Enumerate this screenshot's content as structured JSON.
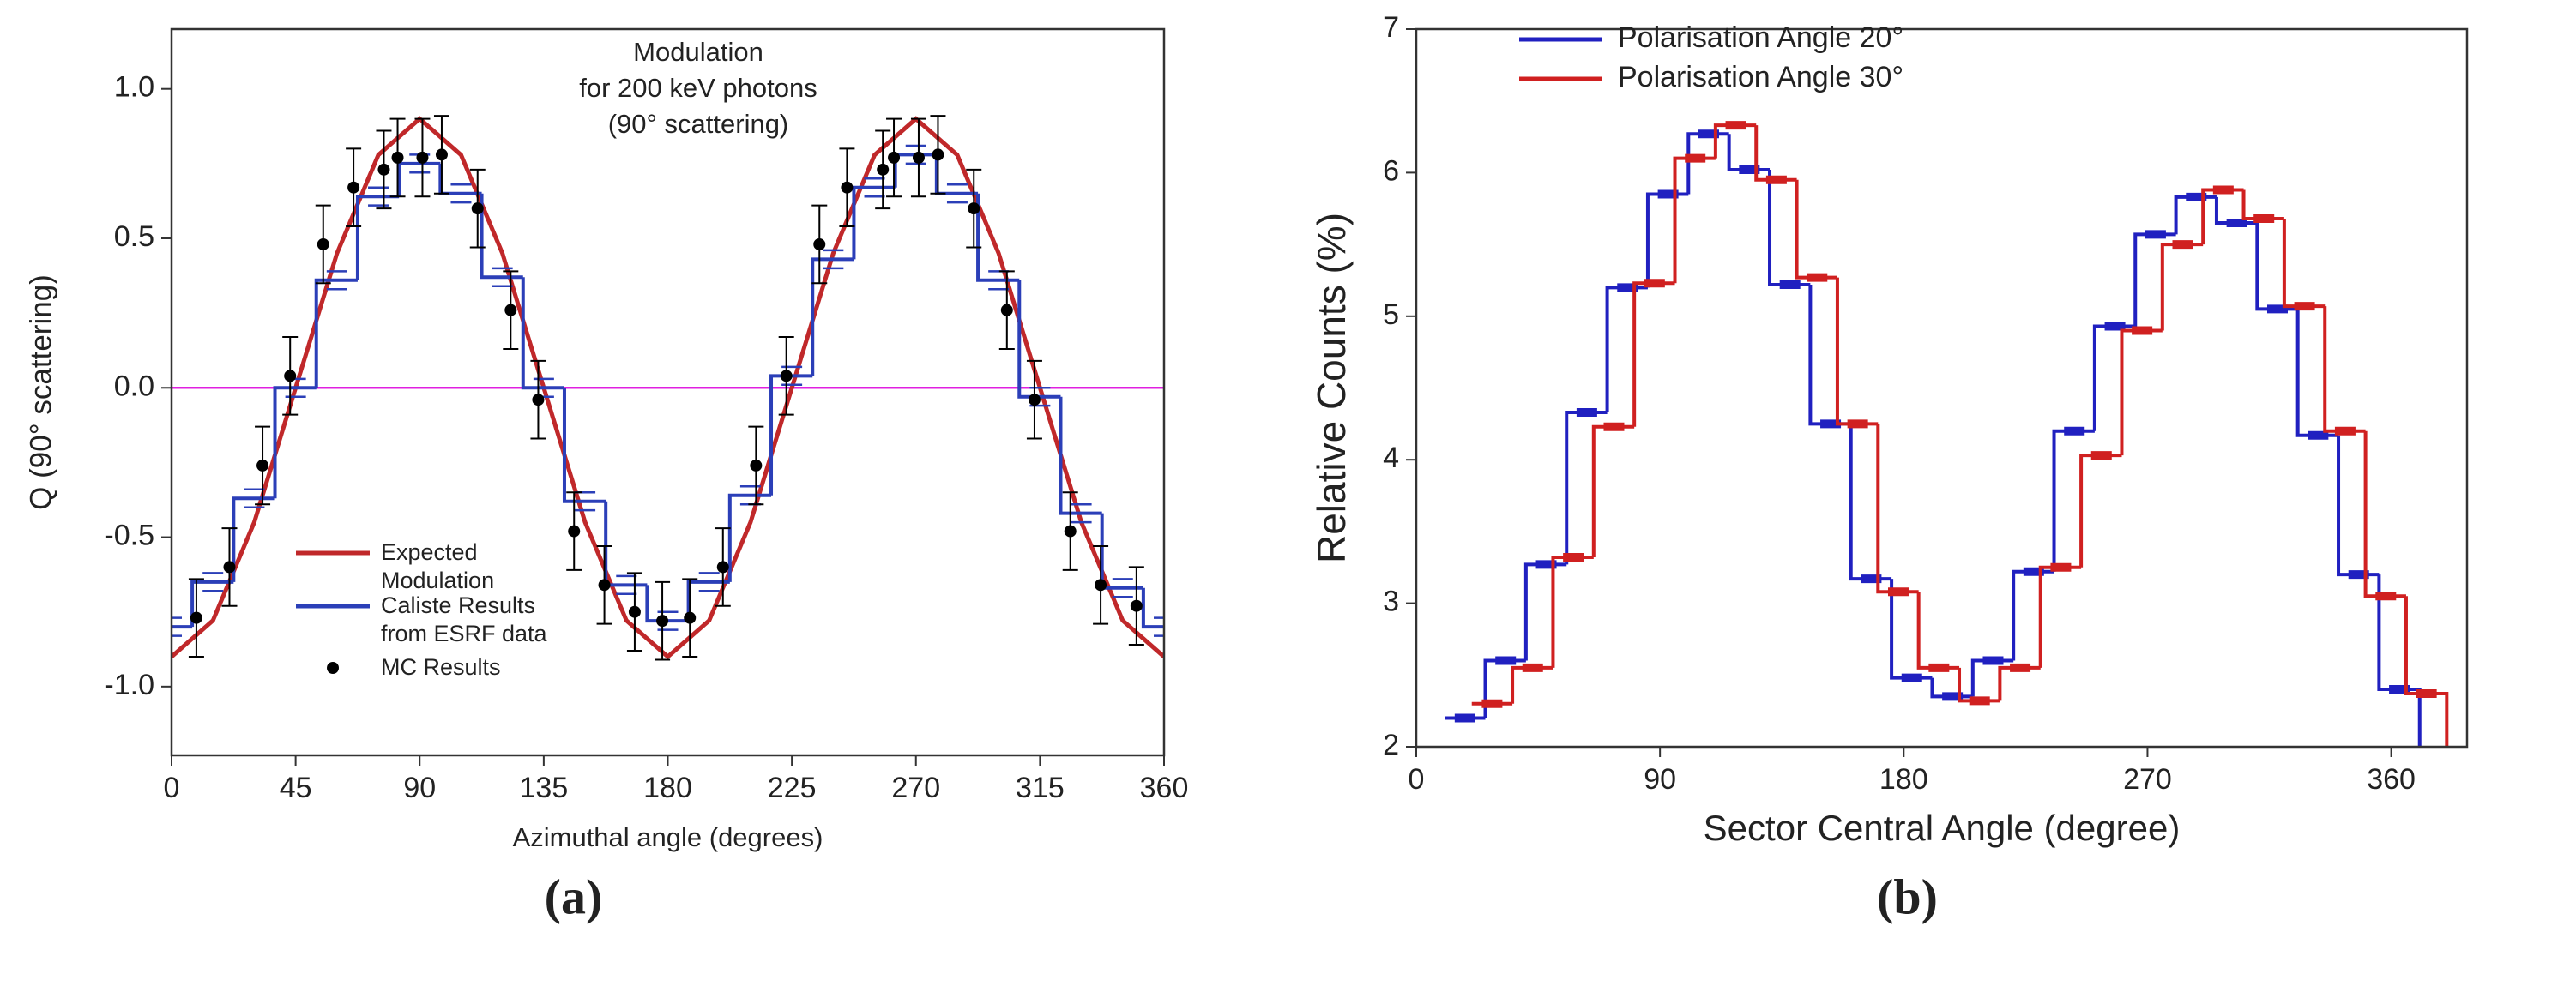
{
  "chart_data": [
    {
      "type": "line",
      "title": [
        "Modulation",
        "for 200 keV photons",
        "(90° scattering)"
      ],
      "x_label": "Azimuthal angle (degrees)",
      "y_label": "Q (90° scattering)",
      "caption": "(a)",
      "xlim": [
        0,
        360
      ],
      "xticks": [
        0,
        45,
        90,
        135,
        180,
        225,
        270,
        315,
        360
      ],
      "ylim": [
        -1.23,
        1.2
      ],
      "yticks": [
        {
          "value": -1,
          "label": "-1.0"
        },
        -0.5,
        {
          "value": 0,
          "label": "0.0"
        },
        0.5,
        {
          "value": 1,
          "label": "1.0"
        }
      ],
      "reference_line": {
        "value": 0,
        "color": "#e020e0"
      },
      "series": [
        {
          "name": "Expected Modulation",
          "type": "line",
          "color": "#c0282a",
          "x": [
            0,
            15,
            30,
            45,
            60,
            75,
            90,
            105,
            120,
            135,
            150,
            165,
            180,
            195,
            210,
            225,
            240,
            255,
            270,
            285,
            300,
            315,
            330,
            345,
            360
          ],
          "values": [
            -0.9,
            -0.779,
            -0.45,
            0,
            0.45,
            0.779,
            0.9,
            0.779,
            0.45,
            0,
            -0.45,
            -0.779,
            -0.9,
            -0.779,
            -0.45,
            0,
            0.45,
            0.779,
            0.9,
            0.779,
            0.45,
            0,
            -0.45,
            -0.779,
            -0.9
          ]
        },
        {
          "name": "Caliste Results from ESRF data",
          "type": "step",
          "color": "#2b3fb8",
          "x": [
            0,
            15,
            30,
            45,
            60,
            75,
            90,
            105,
            120,
            135,
            150,
            165,
            180,
            195,
            210,
            225,
            240,
            255,
            270,
            285,
            300,
            315,
            330,
            345,
            360
          ],
          "values": [
            -0.8,
            -0.65,
            -0.37,
            0,
            0.36,
            0.64,
            0.75,
            0.65,
            0.37,
            0,
            -0.38,
            -0.66,
            -0.78,
            -0.65,
            -0.36,
            0.04,
            0.43,
            0.67,
            0.78,
            0.65,
            0.36,
            -0.03,
            -0.42,
            -0.67,
            -0.8
          ],
          "errors": [
            0.03,
            0.03,
            0.03,
            0.03,
            0.03,
            0.03,
            0.03,
            0.03,
            0.03,
            0.03,
            0.03,
            0.03,
            0.03,
            0.03,
            0.03,
            0.03,
            0.03,
            0.03,
            0.03,
            0.03,
            0.03,
            0.03,
            0.03,
            0.03,
            0.03
          ]
        },
        {
          "name": "MC Results",
          "type": "scatter",
          "color": "#000000",
          "x": [
            9,
            21,
            33,
            43,
            55,
            66,
            77,
            82,
            91,
            98,
            111,
            123,
            133,
            146,
            157,
            168,
            178,
            188,
            200,
            212,
            223,
            235,
            245,
            258,
            262,
            271,
            278,
            291,
            303,
            313,
            326,
            337,
            350
          ],
          "values": [
            -0.77,
            -0.6,
            -0.26,
            0.04,
            0.48,
            0.67,
            0.73,
            0.77,
            0.77,
            0.78,
            0.6,
            0.26,
            -0.04,
            -0.48,
            -0.66,
            -0.75,
            -0.78,
            -0.77,
            -0.6,
            -0.26,
            0.04,
            0.48,
            0.67,
            0.73,
            0.77,
            0.77,
            0.78,
            0.6,
            0.26,
            -0.04,
            -0.48,
            -0.66,
            -0.73
          ],
          "errors": [
            0.13,
            0.13,
            0.13,
            0.13,
            0.13,
            0.13,
            0.13,
            0.13,
            0.13,
            0.13,
            0.13,
            0.13,
            0.13,
            0.13,
            0.13,
            0.13,
            0.13,
            0.13,
            0.13,
            0.13,
            0.13,
            0.13,
            0.13,
            0.13,
            0.13,
            0.13,
            0.13,
            0.13,
            0.13,
            0.13,
            0.13,
            0.13,
            0.13
          ]
        }
      ]
    },
    {
      "type": "step",
      "x_label": "Sector Central Angle (degree)",
      "y_label": "Relative Counts (%)",
      "caption": "(b)",
      "xlim": [
        0,
        388
      ],
      "xticks": [
        0,
        90,
        180,
        270,
        360
      ],
      "ylim": [
        2,
        7
      ],
      "yticks": [
        2,
        3,
        4,
        5,
        6,
        7
      ],
      "series": [
        {
          "name": "Polarisation Angle 20°",
          "type": "step",
          "color": "#2020c0",
          "x": [
            18,
            33,
            48,
            63,
            78,
            93,
            108,
            123,
            138,
            153,
            168,
            183,
            198,
            213,
            228,
            243,
            258,
            273,
            288,
            303,
            318,
            333,
            348,
            363
          ],
          "values": [
            2.2,
            2.6,
            3.27,
            4.33,
            5.2,
            5.85,
            6.27,
            6.02,
            5.22,
            4.25,
            3.17,
            2.48,
            2.35,
            2.6,
            3.22,
            4.2,
            4.93,
            5.57,
            5.83,
            5.65,
            5.05,
            4.17,
            3.2,
            2.4
          ]
        },
        {
          "name": "Polarisation Angle 30°",
          "type": "step",
          "color": "#d02020",
          "x": [
            28,
            43,
            58,
            73,
            88,
            103,
            118,
            133,
            148,
            163,
            178,
            193,
            208,
            223,
            238,
            253,
            268,
            283,
            298,
            313,
            328,
            343,
            358,
            373
          ],
          "values": [
            2.3,
            2.55,
            3.32,
            4.23,
            5.23,
            6.1,
            6.33,
            5.95,
            5.27,
            4.25,
            3.08,
            2.55,
            2.32,
            2.55,
            3.25,
            4.03,
            4.9,
            5.5,
            5.88,
            5.68,
            5.07,
            4.2,
            3.05,
            2.37
          ]
        }
      ]
    }
  ]
}
